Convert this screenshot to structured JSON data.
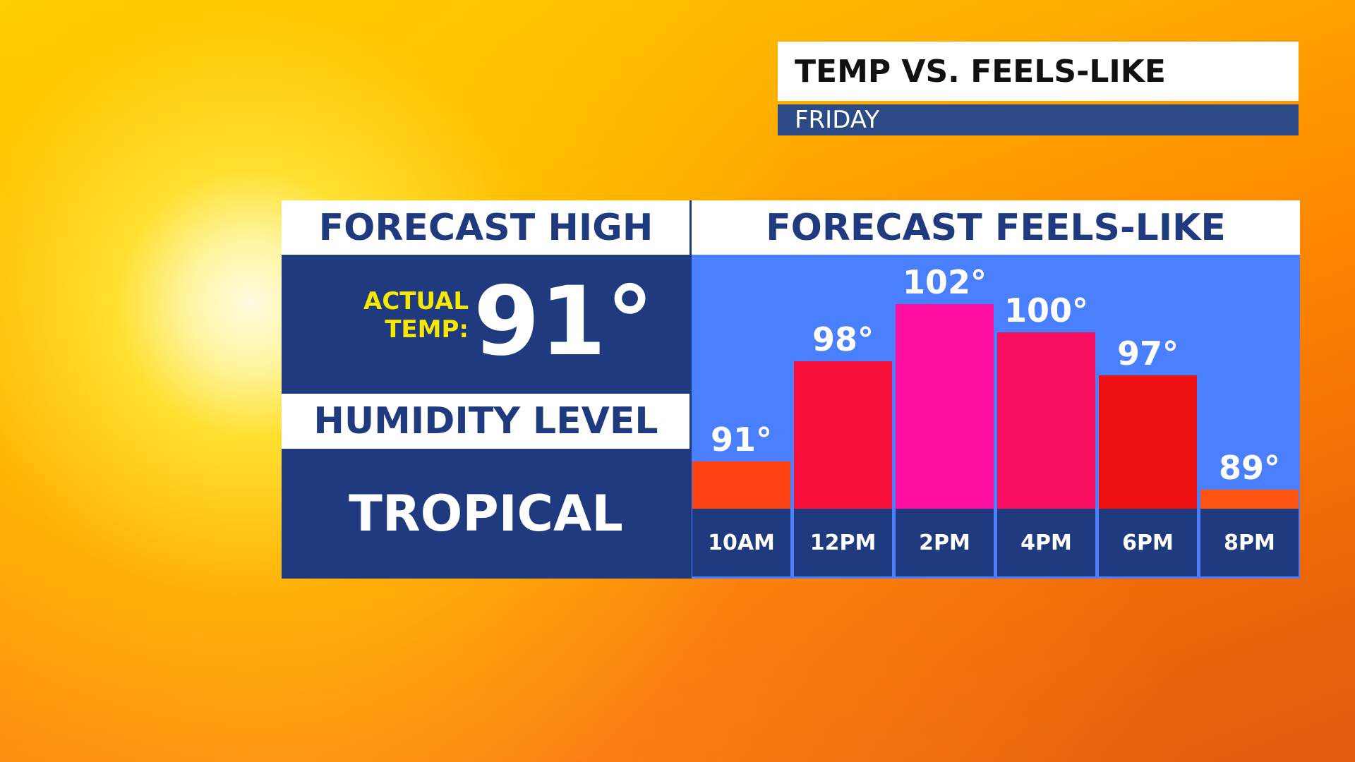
{
  "header": {
    "title": "TEMP VS. FEELS-LIKE",
    "subtitle": "FRIDAY"
  },
  "forecast_high": {
    "heading": "FORECAST HIGH",
    "label": "ACTUAL TEMP:",
    "value": "91°"
  },
  "humidity": {
    "heading": "HUMIDITY LEVEL",
    "value": "TROPICAL"
  },
  "chart_data": {
    "type": "bar",
    "title": "FORECAST FEELS-LIKE",
    "categories": [
      "10AM",
      "12PM",
      "2PM",
      "4PM",
      "6PM",
      "8PM"
    ],
    "values": [
      91,
      98,
      102,
      100,
      97,
      89
    ],
    "value_labels": [
      "91°",
      "98°",
      "102°",
      "100°",
      "97°",
      "89°"
    ],
    "colors": [
      "#ff4212",
      "#f6103a",
      "#ff0fa0",
      "#f80f62",
      "#ee1010",
      "#ff5512"
    ]
  }
}
